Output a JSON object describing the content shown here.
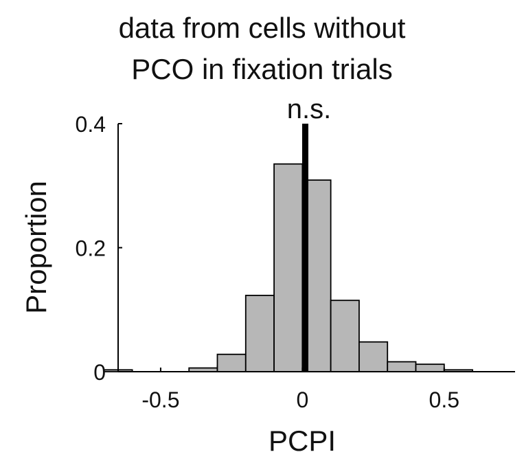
{
  "chart_data": {
    "type": "bar",
    "title_lines": [
      "data from cells without",
      "PCO in fixation trials"
    ],
    "annotation": "n.s.",
    "xlabel": "PCPI",
    "ylabel": "Proportion",
    "xlim": [
      -0.65,
      0.75
    ],
    "ylim": [
      0,
      0.4
    ],
    "xticks": [
      -0.5,
      0,
      0.5
    ],
    "xtick_labels": [
      "-0.5",
      "0",
      "0.5"
    ],
    "yticks": [
      0,
      0.2,
      0.4
    ],
    "ytick_labels": [
      "0",
      "0.2",
      "0.4"
    ],
    "bin_width": 0.1,
    "bins": [
      {
        "x0": -0.7,
        "value": 0.003
      },
      {
        "x0": -0.4,
        "value": 0.006
      },
      {
        "x0": -0.3,
        "value": 0.009
      },
      {
        "x0": -0.3,
        "value": 0.028
      },
      {
        "x0": -0.2,
        "value": 0.123
      },
      {
        "x0": -0.1,
        "value": 0.335
      },
      {
        "x0": 0.0,
        "value": 0.309
      },
      {
        "x0": 0.1,
        "value": 0.115
      },
      {
        "x0": 0.2,
        "value": 0.048
      },
      {
        "x0": 0.3,
        "value": 0.016
      },
      {
        "x0": 0.4,
        "value": 0.012
      },
      {
        "x0": 0.5,
        "value": 0.003
      }
    ],
    "reference_line_x": 0.01,
    "bar_color": "#b7b7b7",
    "edge_color": "#000000",
    "reference_line_color": "#000000"
  }
}
